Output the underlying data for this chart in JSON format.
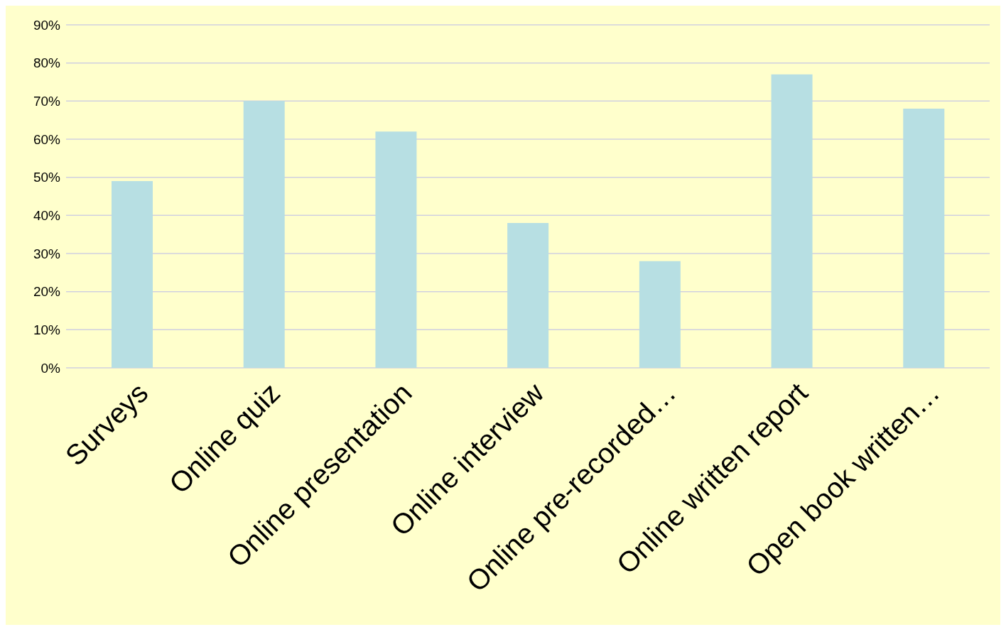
{
  "chart_data": {
    "type": "bar",
    "categories": [
      "Surveys",
      "Online quiz",
      "Online presentation",
      "Online interview",
      "Online pre-recorded…",
      "Online written report",
      "Open book written…"
    ],
    "values": [
      49,
      70,
      62,
      38,
      28,
      77,
      68
    ],
    "color": "#b7dfe3",
    "ylim": [
      0,
      90
    ],
    "yticks": [
      {
        "value": 0,
        "label": "0%"
      },
      {
        "value": 10,
        "label": "10%"
      },
      {
        "value": 20,
        "label": "20%"
      },
      {
        "value": 30,
        "label": "30%"
      },
      {
        "value": 40,
        "label": "40%"
      },
      {
        "value": 50,
        "label": "50%"
      },
      {
        "value": 60,
        "label": "60%"
      },
      {
        "value": 70,
        "label": "70%"
      },
      {
        "value": 80,
        "label": "80%"
      },
      {
        "value": 90,
        "label": "90%"
      }
    ],
    "grid": "y",
    "legend": false
  }
}
